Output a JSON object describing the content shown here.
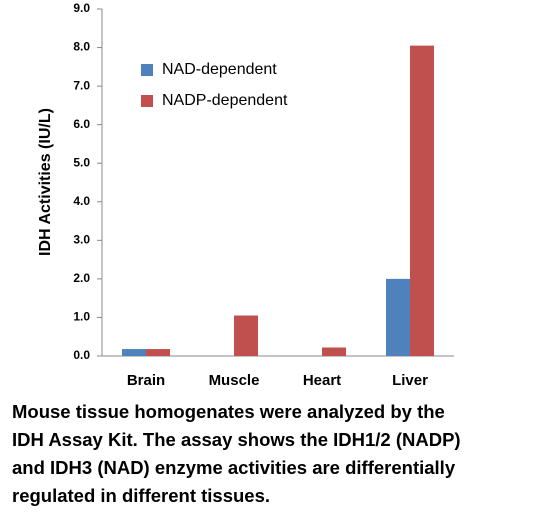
{
  "chart_data": {
    "type": "bar",
    "y_label": "IDH Activities (IU/L)",
    "categories": [
      "Brain",
      "Muscle",
      "Heart",
      "Liver"
    ],
    "series": [
      {
        "name": "NAD-dependent",
        "color": "#4f81bd",
        "values": [
          0.18,
          0,
          0,
          2.0
        ]
      },
      {
        "name": "NADP-dependent",
        "color": "#c0504d",
        "values": [
          0.18,
          1.05,
          0.22,
          8.05
        ]
      }
    ],
    "ylim": [
      0,
      9
    ],
    "yticks": [
      {
        "value": 0,
        "label": "0.0"
      },
      {
        "value": 1,
        "label": "1.0"
      },
      {
        "value": 2,
        "label": "2.0"
      },
      {
        "value": 3,
        "label": "3.0"
      },
      {
        "value": 4,
        "label": "4.0"
      },
      {
        "value": 5,
        "label": "5.0"
      },
      {
        "value": 6,
        "label": "6.0"
      },
      {
        "value": 7,
        "label": "7.0"
      },
      {
        "value": 8,
        "label": "8.0"
      },
      {
        "value": 9,
        "label": "9.0"
      }
    ],
    "grid": false,
    "legend": "upper-left"
  },
  "caption": [
    "Mouse tissue homogenates were analyzed by the",
    "IDH Assay Kit. The assay shows the IDH1/2 (NADP)",
    "and IDH3 (NAD) enzyme activities are differentially",
    "regulated in different tissues."
  ]
}
